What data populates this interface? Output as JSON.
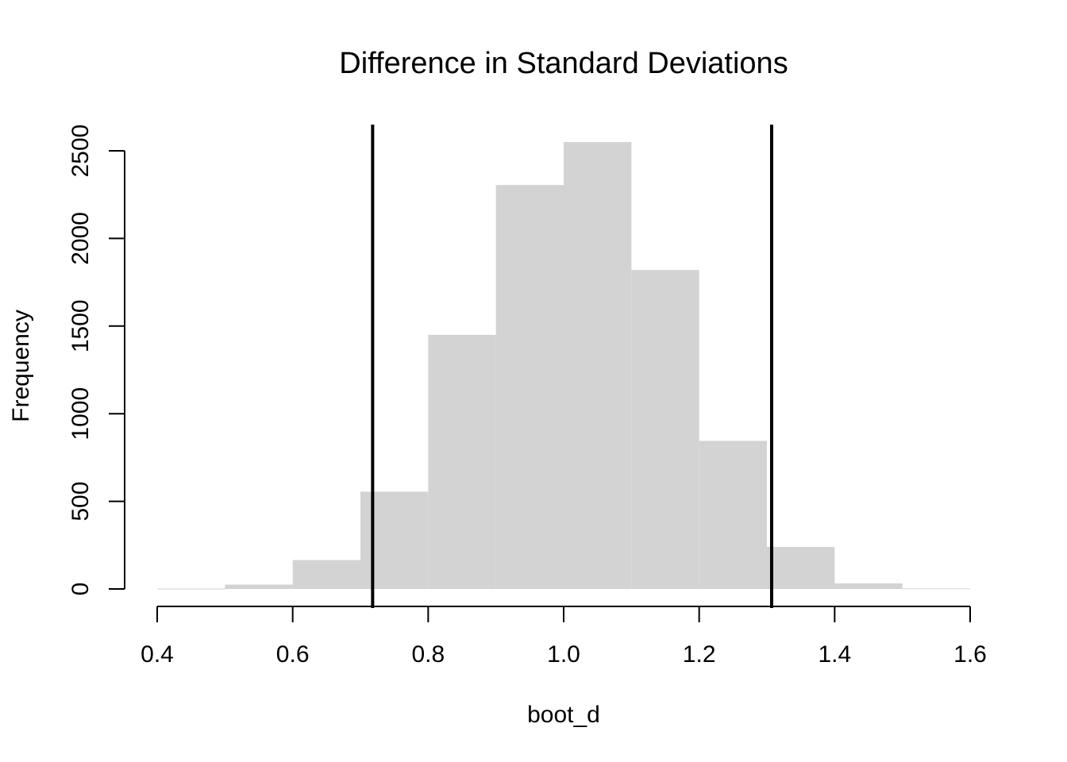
{
  "chart_data": {
    "type": "bar",
    "title": "Difference in Standard Deviations",
    "xlabel": "boot_d",
    "ylabel": "Frequency",
    "xlim": [
      0.4,
      1.6
    ],
    "ylim": [
      0,
      2650
    ],
    "x_ticks": [
      "0.4",
      "0.6",
      "0.8",
      "1.0",
      "1.2",
      "1.4",
      "1.6"
    ],
    "y_ticks": [
      "0",
      "500",
      "1000",
      "1500",
      "2000",
      "2500"
    ],
    "bins": [
      {
        "start": 0.4,
        "end": 0.5,
        "count": 2
      },
      {
        "start": 0.5,
        "end": 0.6,
        "count": 25
      },
      {
        "start": 0.6,
        "end": 0.7,
        "count": 165
      },
      {
        "start": 0.7,
        "end": 0.8,
        "count": 555
      },
      {
        "start": 0.8,
        "end": 0.9,
        "count": 1450
      },
      {
        "start": 0.9,
        "end": 1.0,
        "count": 2305
      },
      {
        "start": 1.0,
        "end": 1.1,
        "count": 2550
      },
      {
        "start": 1.1,
        "end": 1.2,
        "count": 1820
      },
      {
        "start": 1.2,
        "end": 1.3,
        "count": 845
      },
      {
        "start": 1.3,
        "end": 1.4,
        "count": 240
      },
      {
        "start": 1.4,
        "end": 1.5,
        "count": 32
      },
      {
        "start": 1.5,
        "end": 1.6,
        "count": 3
      }
    ],
    "reference_lines": [
      0.718,
      1.307
    ],
    "bar_color": "#d3d3d3",
    "line_color": "#000000",
    "grid": false,
    "legend": "none"
  }
}
